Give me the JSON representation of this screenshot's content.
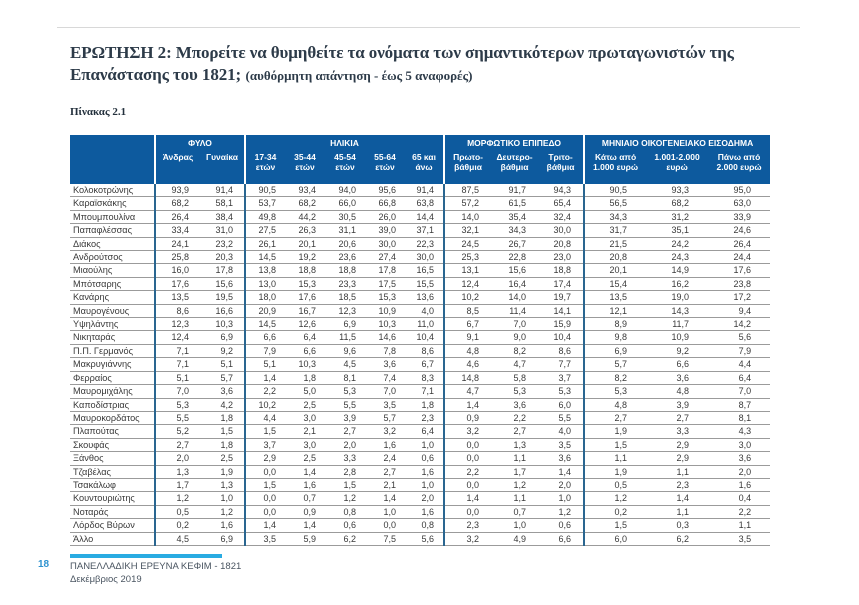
{
  "page": {
    "title_main": "ΕΡΩΤΗΣΗ 2: Μπορείτε να θυμηθείτε τα ονόματα των σημαντικότερων πρωταγωνιστών της Επανάστασης του 1821;",
    "title_note": "(αυθόρμητη απάντηση - έως 5 αναφορές)",
    "table_caption": "Πίνακας 2.1",
    "colors": {
      "header_blue": "#0d5a9e",
      "group_separator_blue": "#2a6690",
      "accent_light_blue": "#29abe2",
      "page_number_blue": "#2e93d0"
    }
  },
  "table": {
    "col_groups": [
      {
        "label": "ΦΥΛΟ",
        "cols": [
          "Άνδρας",
          "Γυναίκα"
        ]
      },
      {
        "label": "ΗΛΙΚΙΑ",
        "cols": [
          "17-34\nετών",
          "35-44\nετών",
          "45-54\nετών",
          "55-64\nετών",
          "65 και\nάνω"
        ]
      },
      {
        "label": "ΜΟΡΦΩΤΙΚΟ ΕΠΙΠΕΔΟ",
        "cols": [
          "Πρωτο-\nβάθμια",
          "Δευτερο-\nβάθμια",
          "Τριτο-\nβάθμια"
        ]
      },
      {
        "label": "ΜΗΝΙΑΙΟ ΟΙΚΟΓΕΝΕΙΑΚΟ ΕΙΣΟΔΗΜΑ",
        "cols": [
          "Κάτω από\n1.000 ευρώ",
          "1.001-2.000\nευρώ",
          "Πάνω από\n2.000 ευρώ"
        ]
      }
    ],
    "rows": [
      {
        "name": "Κολοκοτρώνης",
        "values": [
          "93,9",
          "91,4",
          "90,5",
          "93,4",
          "94,0",
          "95,6",
          "91,4",
          "87,5",
          "91,7",
          "94,3",
          "90,5",
          "93,3",
          "95,0"
        ]
      },
      {
        "name": "Καραϊσκάκης",
        "values": [
          "68,2",
          "58,1",
          "53,7",
          "68,2",
          "66,0",
          "66,8",
          "63,8",
          "57,2",
          "61,5",
          "65,4",
          "56,5",
          "68,2",
          "63,0"
        ]
      },
      {
        "name": "Μπουμπουλίνα",
        "values": [
          "26,4",
          "38,4",
          "49,8",
          "44,2",
          "30,5",
          "26,0",
          "14,4",
          "14,0",
          "35,4",
          "32,4",
          "34,3",
          "31,2",
          "33,9"
        ]
      },
      {
        "name": "Παπαφλέσσας",
        "values": [
          "33,4",
          "31,0",
          "27,5",
          "26,3",
          "31,1",
          "39,0",
          "37,1",
          "32,1",
          "34,3",
          "30,0",
          "31,7",
          "35,1",
          "24,6"
        ]
      },
      {
        "name": "Διάκος",
        "values": [
          "24,1",
          "23,2",
          "26,1",
          "20,1",
          "20,6",
          "30,0",
          "22,3",
          "24,5",
          "26,7",
          "20,8",
          "21,5",
          "24,2",
          "26,4"
        ]
      },
      {
        "name": "Ανδρούτσος",
        "values": [
          "25,8",
          "20,3",
          "14,5",
          "19,2",
          "23,6",
          "27,4",
          "30,0",
          "25,3",
          "22,8",
          "23,0",
          "20,8",
          "24,3",
          "24,4"
        ]
      },
      {
        "name": "Μιαούλης",
        "values": [
          "16,0",
          "17,8",
          "13,8",
          "18,8",
          "18,8",
          "17,8",
          "16,5",
          "13,1",
          "15,6",
          "18,8",
          "20,1",
          "14,9",
          "17,6"
        ]
      },
      {
        "name": "Μπότσαρης",
        "values": [
          "17,6",
          "15,6",
          "13,0",
          "15,3",
          "23,3",
          "17,5",
          "15,5",
          "12,4",
          "16,4",
          "17,4",
          "15,4",
          "16,2",
          "23,8"
        ]
      },
      {
        "name": "Κανάρης",
        "values": [
          "13,5",
          "19,5",
          "18,0",
          "17,6",
          "18,5",
          "15,3",
          "13,6",
          "10,2",
          "14,0",
          "19,7",
          "13,5",
          "19,0",
          "17,2"
        ]
      },
      {
        "name": "Μαυρογένους",
        "values": [
          "8,6",
          "16,6",
          "20,9",
          "16,7",
          "12,3",
          "10,9",
          "4,0",
          "8,5",
          "11,4",
          "14,1",
          "12,1",
          "14,3",
          "9,4"
        ]
      },
      {
        "name": "Υψηλάντης",
        "values": [
          "12,3",
          "10,3",
          "14,5",
          "12,6",
          "6,9",
          "10,3",
          "11,0",
          "6,7",
          "7,0",
          "15,9",
          "8,9",
          "11,7",
          "14,2"
        ]
      },
      {
        "name": "Νικηταράς",
        "values": [
          "12,4",
          "6,9",
          "6,6",
          "6,4",
          "11,5",
          "14,6",
          "10,4",
          "9,1",
          "9,0",
          "10,4",
          "9,8",
          "10,9",
          "5,6"
        ]
      },
      {
        "name": "Π.Π. Γερμανός",
        "values": [
          "7,1",
          "9,2",
          "7,9",
          "6,6",
          "9,6",
          "7,8",
          "8,6",
          "4,8",
          "8,2",
          "8,6",
          "6,9",
          "9,2",
          "7,9"
        ]
      },
      {
        "name": "Μακρυγιάννης",
        "values": [
          "7,1",
          "5,1",
          "5,1",
          "10,3",
          "4,5",
          "3,6",
          "6,7",
          "4,6",
          "4,7",
          "7,7",
          "5,7",
          "6,6",
          "4,4"
        ]
      },
      {
        "name": "Φερραίος",
        "values": [
          "5,1",
          "5,7",
          "1,4",
          "1,8",
          "8,1",
          "7,4",
          "8,3",
          "14,8",
          "5,8",
          "3,7",
          "8,2",
          "3,6",
          "6,4"
        ]
      },
      {
        "name": "Μαυρομιχάλης",
        "values": [
          "7,0",
          "3,6",
          "2,2",
          "5,0",
          "5,3",
          "7,0",
          "7,1",
          "4,7",
          "5,3",
          "5,3",
          "5,3",
          "4,8",
          "7,0"
        ]
      },
      {
        "name": "Καποδίστριας",
        "values": [
          "5,3",
          "4,2",
          "10,2",
          "2,5",
          "5,5",
          "3,5",
          "1,8",
          "1,4",
          "3,6",
          "6,0",
          "4,8",
          "3,9",
          "8,7"
        ]
      },
      {
        "name": "Μαυροκορδάτος",
        "values": [
          "5,5",
          "1,8",
          "4,4",
          "3,0",
          "3,9",
          "5,7",
          "2,3",
          "0,9",
          "2,2",
          "5,5",
          "2,7",
          "2,7",
          "8,1"
        ]
      },
      {
        "name": "Πλαπούτας",
        "values": [
          "5,2",
          "1,5",
          "1,5",
          "2,1",
          "2,7",
          "3,2",
          "6,4",
          "3,2",
          "2,7",
          "4,0",
          "1,9",
          "3,3",
          "4,3"
        ]
      },
      {
        "name": "Σκουφάς",
        "values": [
          "2,7",
          "1,8",
          "3,7",
          "3,0",
          "2,0",
          "1,6",
          "1,0",
          "0,0",
          "1,3",
          "3,5",
          "1,5",
          "2,9",
          "3,0"
        ]
      },
      {
        "name": "Ξάνθος",
        "values": [
          "2,0",
          "2,5",
          "2,9",
          "2,5",
          "3,3",
          "2,4",
          "0,6",
          "0,0",
          "1,1",
          "3,6",
          "1,1",
          "2,9",
          "3,6"
        ]
      },
      {
        "name": "Τζαβέλας",
        "values": [
          "1,3",
          "1,9",
          "0,0",
          "1,4",
          "2,8",
          "2,7",
          "1,6",
          "2,2",
          "1,7",
          "1,4",
          "1,9",
          "1,1",
          "2,0"
        ]
      },
      {
        "name": "Τσακάλωφ",
        "values": [
          "1,7",
          "1,3",
          "1,5",
          "1,6",
          "1,5",
          "2,1",
          "1,0",
          "0,0",
          "1,2",
          "2,0",
          "0,5",
          "2,3",
          "1,6"
        ]
      },
      {
        "name": "Κουντουριώτης",
        "values": [
          "1,2",
          "1,0",
          "0,0",
          "0,7",
          "1,2",
          "1,4",
          "2,0",
          "1,4",
          "1,1",
          "1,0",
          "1,2",
          "1,4",
          "0,4"
        ]
      },
      {
        "name": "Νοταράς",
        "values": [
          "0,5",
          "1,2",
          "0,0",
          "0,9",
          "0,8",
          "1,0",
          "1,6",
          "0,0",
          "0,7",
          "1,2",
          "0,2",
          "1,1",
          "2,2"
        ]
      },
      {
        "name": "Λόρδος Βύρων",
        "values": [
          "0,2",
          "1,6",
          "1,4",
          "1,4",
          "0,6",
          "0,0",
          "0,8",
          "2,3",
          "1,0",
          "0,6",
          "1,5",
          "0,3",
          "1,1"
        ]
      },
      {
        "name": "Άλλο",
        "values": [
          "4,5",
          "6,9",
          "3,5",
          "5,9",
          "6,2",
          "7,5",
          "5,6",
          "3,2",
          "4,9",
          "6,6",
          "6,0",
          "6,2",
          "3,5"
        ]
      }
    ]
  },
  "footer": {
    "page_number": "18",
    "line1": "ΠΑΝΕΛΛΑΔΙΚΗ ΕΡΕΥΝΑ ΚΕΦΙΜ - 1821",
    "line2": "Δεκέμβριος 2019"
  }
}
